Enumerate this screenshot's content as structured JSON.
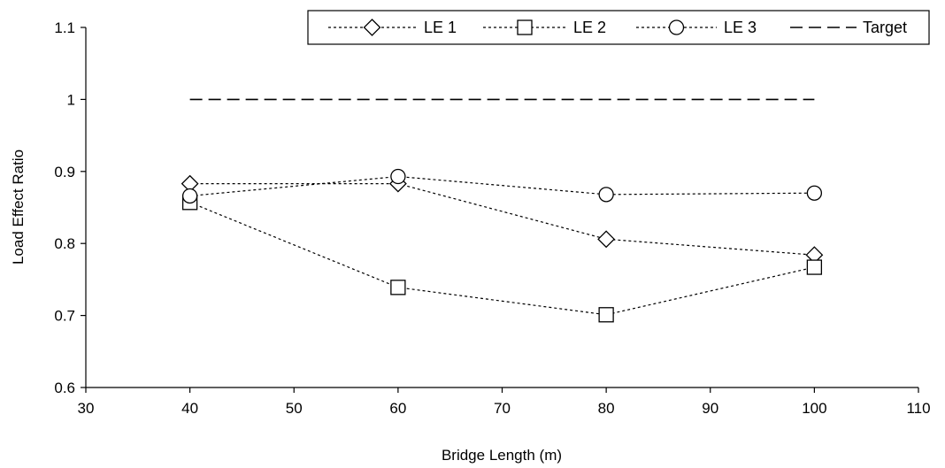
{
  "chart_data": {
    "type": "line",
    "xlabel": "Bridge Length (m)",
    "ylabel": "Load Effect Ratio",
    "xlim": [
      30,
      110
    ],
    "ylim": [
      0.6,
      1.1
    ],
    "xticks": [
      30,
      40,
      50,
      60,
      70,
      80,
      90,
      100,
      110
    ],
    "yticks": [
      0.6,
      0.7,
      0.8,
      0.9,
      1,
      1.1
    ],
    "xtick_labels": [
      "30",
      "40",
      "50",
      "60",
      "70",
      "80",
      "90",
      "100",
      "110"
    ],
    "ytick_labels": [
      "0.6",
      "0.7",
      "0.8",
      "0.9",
      "1",
      "1.1"
    ],
    "grid": false,
    "legend_position": "top-right",
    "series": [
      {
        "name": "LE 1",
        "marker": "diamond",
        "line": "dotted",
        "x": [
          40,
          60,
          80,
          100
        ],
        "y": [
          0.883,
          0.883,
          0.806,
          0.784
        ]
      },
      {
        "name": "LE 2",
        "marker": "square",
        "line": "dotted",
        "x": [
          40,
          60,
          80,
          100
        ],
        "y": [
          0.857,
          0.739,
          0.701,
          0.767
        ]
      },
      {
        "name": "LE 3",
        "marker": "circle",
        "line": "dotted",
        "x": [
          40,
          60,
          80,
          100
        ],
        "y": [
          0.866,
          0.893,
          0.868,
          0.87
        ]
      },
      {
        "name": "Target",
        "marker": "none",
        "line": "dashed",
        "x": [
          40,
          100
        ],
        "y": [
          1.0,
          1.0
        ]
      }
    ],
    "colors": {
      "line": "#000000",
      "background": "#ffffff"
    }
  }
}
